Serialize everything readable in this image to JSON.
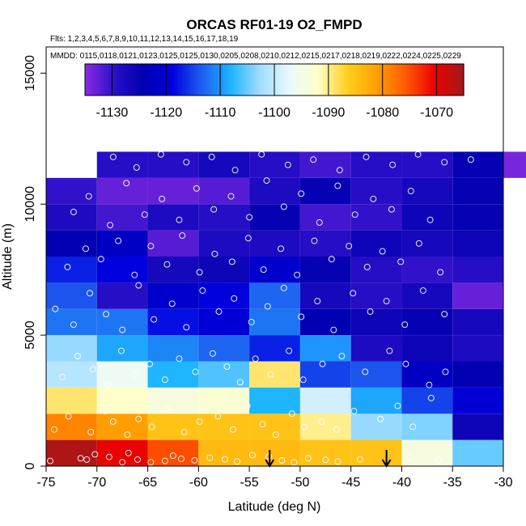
{
  "chart_data": {
    "type": "heatmap",
    "title": "ORCAS RF01-19 O2_FMPD",
    "flights_note": "Flts: 1,2,3,4,5,6,7,8,9,10,11,12,13,14,15,16,17,18,19",
    "dates_note": "MMDD: 0115,0118,0121,0123,0125,0125,0130,0205,0208,0210,0212,0215,0217,0218,0219,0222,0224,0225,0229",
    "xlabel": "Latitude (deg N)",
    "ylabel": "Altitude (m)",
    "xlim": [
      -75,
      -30
    ],
    "ylim": [
      0,
      16000
    ],
    "x_ticks": [
      -75,
      -70,
      -65,
      -60,
      -55,
      -50,
      -45,
      -40,
      -35,
      -30
    ],
    "x_tick_labels": [
      "-75",
      "-70",
      "-65",
      "-60",
      "-55",
      "-50",
      "-45",
      "-40",
      "-35",
      "-30"
    ],
    "y_ticks": [
      0,
      5000,
      10000,
      15000
    ],
    "y_tick_labels": [
      "0",
      "5000",
      "10000",
      "15000"
    ],
    "colorbar": {
      "range": [
        -1135,
        -1065
      ],
      "ticks": [
        -1130,
        -1120,
        -1110,
        -1100,
        -1090,
        -1080,
        -1070
      ],
      "tick_labels": [
        "-1130",
        "-1120",
        "-1110",
        "-1100",
        "-1090",
        "-1080",
        "-1070"
      ],
      "colors": [
        "#8a2be2",
        "#2a10c8",
        "#0000b0",
        "#0000e0",
        "#1e5ef0",
        "#1eb4ff",
        "#9fdcff",
        "#e8f8ff",
        "#ffffc8",
        "#ffd020",
        "#ffa000",
        "#ff5a00",
        "#ee0000",
        "#a01a1a"
      ]
    },
    "bin_width_deg": 5,
    "bin_height_m": 1000,
    "cells": [
      {
        "lat": -75,
        "alt": 0,
        "value": -1066
      },
      {
        "lat": -75,
        "alt": 1000,
        "value": -1079
      },
      {
        "lat": -75,
        "alt": 2000,
        "value": -1089
      },
      {
        "lat": -75,
        "alt": 3000,
        "value": -1101
      },
      {
        "lat": -75,
        "alt": 4000,
        "value": -1103
      },
      {
        "lat": -75,
        "alt": 5000,
        "value": -1112
      },
      {
        "lat": -75,
        "alt": 6000,
        "value": -1114
      },
      {
        "lat": -75,
        "alt": 7000,
        "value": -1117
      },
      {
        "lat": -75,
        "alt": 8000,
        "value": -1124
      },
      {
        "lat": -75,
        "alt": 9000,
        "value": -1128
      },
      {
        "lat": -75,
        "alt": 10000,
        "value": -1130
      },
      {
        "lat": -70,
        "alt": 0,
        "value": -1070
      },
      {
        "lat": -70,
        "alt": 1000,
        "value": -1081
      },
      {
        "lat": -70,
        "alt": 2000,
        "value": -1092
      },
      {
        "lat": -70,
        "alt": 3000,
        "value": -1096
      },
      {
        "lat": -70,
        "alt": 4000,
        "value": -1109
      },
      {
        "lat": -70,
        "alt": 5000,
        "value": -1112
      },
      {
        "lat": -70,
        "alt": 6000,
        "value": -1129
      },
      {
        "lat": -70,
        "alt": 7000,
        "value": -1119
      },
      {
        "lat": -70,
        "alt": 8000,
        "value": -1122
      },
      {
        "lat": -70,
        "alt": 9000,
        "value": -1131
      },
      {
        "lat": -70,
        "alt": 10000,
        "value": -1133
      },
      {
        "lat": -70,
        "alt": 11000,
        "value": -1129
      },
      {
        "lat": -65,
        "alt": 0,
        "value": -1075
      },
      {
        "lat": -65,
        "alt": 1000,
        "value": -1085
      },
      {
        "lat": -65,
        "alt": 2000,
        "value": -1094
      },
      {
        "lat": -65,
        "alt": 3000,
        "value": -1108
      },
      {
        "lat": -65,
        "alt": 4000,
        "value": -1111
      },
      {
        "lat": -65,
        "alt": 5000,
        "value": -1118
      },
      {
        "lat": -65,
        "alt": 6000,
        "value": -1121
      },
      {
        "lat": -65,
        "alt": 7000,
        "value": -1127
      },
      {
        "lat": -65,
        "alt": 8000,
        "value": -1132
      },
      {
        "lat": -65,
        "alt": 9000,
        "value": -1128
      },
      {
        "lat": -65,
        "alt": 10000,
        "value": -1133
      },
      {
        "lat": -65,
        "alt": 11000,
        "value": -1129
      },
      {
        "lat": -60,
        "alt": 0,
        "value": -1084
      },
      {
        "lat": -60,
        "alt": 1000,
        "value": -1085
      },
      {
        "lat": -60,
        "alt": 2000,
        "value": -1093
      },
      {
        "lat": -60,
        "alt": 3000,
        "value": -1106
      },
      {
        "lat": -60,
        "alt": 4000,
        "value": -1113
      },
      {
        "lat": -60,
        "alt": 5000,
        "value": -1120
      },
      {
        "lat": -60,
        "alt": 6000,
        "value": -1119
      },
      {
        "lat": -60,
        "alt": 7000,
        "value": -1126
      },
      {
        "lat": -60,
        "alt": 8000,
        "value": -1128
      },
      {
        "lat": -60,
        "alt": 9000,
        "value": -1129
      },
      {
        "lat": -60,
        "alt": 10000,
        "value": -1132
      },
      {
        "lat": -60,
        "alt": 11000,
        "value": -1127
      },
      {
        "lat": -55,
        "alt": 0,
        "value": -1084
      },
      {
        "lat": -55,
        "alt": 1000,
        "value": -1085
      },
      {
        "lat": -55,
        "alt": 2000,
        "value": -1108
      },
      {
        "lat": -55,
        "alt": 3000,
        "value": -1089
      },
      {
        "lat": -55,
        "alt": 4000,
        "value": -1117
      },
      {
        "lat": -55,
        "alt": 5000,
        "value": -1112
      },
      {
        "lat": -55,
        "alt": 6000,
        "value": -1113
      },
      {
        "lat": -55,
        "alt": 7000,
        "value": -1121
      },
      {
        "lat": -55,
        "alt": 8000,
        "value": -1128
      },
      {
        "lat": -55,
        "alt": 9000,
        "value": -1125
      },
      {
        "lat": -55,
        "alt": 10000,
        "value": -1128
      },
      {
        "lat": -55,
        "alt": 11000,
        "value": -1129
      },
      {
        "lat": -50,
        "alt": 0,
        "value": -1085
      },
      {
        "lat": -50,
        "alt": 1000,
        "value": -1090
      },
      {
        "lat": -50,
        "alt": 2000,
        "value": -1099
      },
      {
        "lat": -50,
        "alt": 3000,
        "value": -1115
      },
      {
        "lat": -50,
        "alt": 4000,
        "value": -1110
      },
      {
        "lat": -50,
        "alt": 5000,
        "value": -1124
      },
      {
        "lat": -50,
        "alt": 6000,
        "value": -1127
      },
      {
        "lat": -50,
        "alt": 7000,
        "value": -1125
      },
      {
        "lat": -50,
        "alt": 8000,
        "value": -1129
      },
      {
        "lat": -50,
        "alt": 9000,
        "value": -1131
      },
      {
        "lat": -50,
        "alt": 10000,
        "value": -1125
      },
      {
        "lat": -50,
        "alt": 11000,
        "value": -1131
      },
      {
        "lat": -45,
        "alt": 0,
        "value": -1085
      },
      {
        "lat": -45,
        "alt": 1000,
        "value": -1103
      },
      {
        "lat": -45,
        "alt": 2000,
        "value": -1109
      },
      {
        "lat": -45,
        "alt": 3000,
        "value": -1114
      },
      {
        "lat": -45,
        "alt": 4000,
        "value": -1128
      },
      {
        "lat": -45,
        "alt": 5000,
        "value": -1126
      },
      {
        "lat": -45,
        "alt": 6000,
        "value": -1129
      },
      {
        "lat": -45,
        "alt": 7000,
        "value": -1129
      },
      {
        "lat": -45,
        "alt": 8000,
        "value": -1126
      },
      {
        "lat": -45,
        "alt": 9000,
        "value": -1130
      },
      {
        "lat": -45,
        "alt": 10000,
        "value": -1129
      },
      {
        "lat": -45,
        "alt": 11000,
        "value": -1129
      },
      {
        "lat": -40,
        "alt": 0,
        "value": -1094
      },
      {
        "lat": -40,
        "alt": 1000,
        "value": -1104
      },
      {
        "lat": -40,
        "alt": 2000,
        "value": -1115
      },
      {
        "lat": -40,
        "alt": 3000,
        "value": -1122
      },
      {
        "lat": -40,
        "alt": 4000,
        "value": -1126
      },
      {
        "lat": -40,
        "alt": 5000,
        "value": -1125
      },
      {
        "lat": -40,
        "alt": 6000,
        "value": -1127
      },
      {
        "lat": -40,
        "alt": 7000,
        "value": -1130
      },
      {
        "lat": -40,
        "alt": 8000,
        "value": -1127
      },
      {
        "lat": -40,
        "alt": 9000,
        "value": -1126
      },
      {
        "lat": -40,
        "alt": 10000,
        "value": -1127
      },
      {
        "lat": -40,
        "alt": 11000,
        "value": -1129
      },
      {
        "lat": -35,
        "alt": 0,
        "value": -1105
      },
      {
        "lat": -35,
        "alt": 1000,
        "value": -1126
      },
      {
        "lat": -35,
        "alt": 2000,
        "value": -1120
      },
      {
        "lat": -35,
        "alt": 3000,
        "value": -1124
      },
      {
        "lat": -35,
        "alt": 4000,
        "value": -1128
      },
      {
        "lat": -35,
        "alt": 5000,
        "value": -1127
      },
      {
        "lat": -35,
        "alt": 6000,
        "value": -1133
      },
      {
        "lat": -35,
        "alt": 7000,
        "value": -1129
      },
      {
        "lat": -35,
        "alt": 8000,
        "value": -1126
      },
      {
        "lat": -35,
        "alt": 9000,
        "value": -1125
      },
      {
        "lat": -35,
        "alt": 10000,
        "value": -1125
      },
      {
        "lat": -35,
        "alt": 11000,
        "value": -1125
      },
      {
        "lat": -30,
        "alt": 11000,
        "value": -1134
      }
    ],
    "observations": [
      [
        -74.6,
        200
      ],
      [
        -71.6,
        300
      ],
      [
        -71.0,
        250
      ],
      [
        -70.2,
        450
      ],
      [
        -68.8,
        350
      ],
      [
        -67.5,
        150
      ],
      [
        -66.9,
        500
      ],
      [
        -66.0,
        250
      ],
      [
        -64.7,
        150
      ],
      [
        -63.3,
        200
      ],
      [
        -62.5,
        400
      ],
      [
        -61.7,
        280
      ],
      [
        -60.4,
        220
      ],
      [
        -58.9,
        320
      ],
      [
        -57.4,
        260
      ],
      [
        -56.2,
        180
      ],
      [
        -54.7,
        420
      ],
      [
        -53.1,
        360
      ],
      [
        -51.8,
        220
      ],
      [
        -50.6,
        140
      ],
      [
        -49.2,
        300
      ],
      [
        -47.5,
        240
      ],
      [
        -46.3,
        180
      ],
      [
        -44.1,
        260
      ],
      [
        -39.2,
        320
      ],
      [
        -36.4,
        220
      ],
      [
        -74.2,
        1400
      ],
      [
        -72.8,
        1900
      ],
      [
        -70.6,
        1300
      ],
      [
        -69.2,
        2100
      ],
      [
        -68.4,
        1700
      ],
      [
        -67.0,
        1200
      ],
      [
        -65.9,
        1800
      ],
      [
        -64.6,
        1500
      ],
      [
        -63.1,
        2200
      ],
      [
        -61.4,
        1300
      ],
      [
        -59.9,
        1700
      ],
      [
        -58.1,
        1900
      ],
      [
        -56.6,
        1400
      ],
      [
        -55.2,
        2300
      ],
      [
        -53.7,
        1600
      ],
      [
        -52.4,
        1200
      ],
      [
        -50.8,
        2000
      ],
      [
        -49.6,
        1500
      ],
      [
        -47.9,
        1700
      ],
      [
        -46.4,
        1400
      ],
      [
        -44.7,
        2100
      ],
      [
        -42.1,
        1800
      ],
      [
        -40.4,
        2300
      ],
      [
        -38.9,
        1500
      ],
      [
        -37.1,
        2600
      ],
      [
        -73.4,
        3400
      ],
      [
        -71.9,
        4200
      ],
      [
        -70.4,
        3700
      ],
      [
        -68.9,
        3100
      ],
      [
        -67.6,
        4400
      ],
      [
        -66.2,
        3500
      ],
      [
        -64.8,
        3900
      ],
      [
        -63.3,
        3300
      ],
      [
        -61.9,
        4100
      ],
      [
        -60.3,
        3600
      ],
      [
        -58.6,
        4300
      ],
      [
        -57.2,
        3800
      ],
      [
        -55.9,
        3200
      ],
      [
        -54.4,
        4100
      ],
      [
        -52.9,
        3500
      ],
      [
        -51.1,
        4400
      ],
      [
        -49.7,
        3300
      ],
      [
        -47.8,
        3900
      ],
      [
        -45.9,
        4200
      ],
      [
        -43.6,
        3600
      ],
      [
        -41.2,
        4400
      ],
      [
        -39.6,
        3900
      ],
      [
        -37.3,
        3100
      ],
      [
        -35.7,
        3600
      ],
      [
        -74.1,
        6000
      ],
      [
        -72.3,
        5400
      ],
      [
        -70.7,
        6600
      ],
      [
        -69.1,
        5800
      ],
      [
        -67.5,
        5200
      ],
      [
        -65.9,
        6900
      ],
      [
        -64.4,
        5600
      ],
      [
        -62.6,
        6200
      ],
      [
        -61.2,
        5300
      ],
      [
        -59.6,
        6700
      ],
      [
        -58.0,
        5900
      ],
      [
        -56.5,
        6400
      ],
      [
        -54.8,
        5500
      ],
      [
        -53.2,
        6100
      ],
      [
        -51.6,
        6800
      ],
      [
        -49.9,
        5700
      ],
      [
        -48.3,
        6300
      ],
      [
        -46.7,
        5200
      ],
      [
        -44.8,
        6600
      ],
      [
        -43.1,
        5900
      ],
      [
        -41.5,
        6300
      ],
      [
        -39.7,
        5400
      ],
      [
        -37.9,
        6700
      ],
      [
        -35.8,
        5800
      ],
      [
        -72.9,
        7600
      ],
      [
        -71.1,
        8300
      ],
      [
        -69.6,
        7900
      ],
      [
        -67.9,
        8600
      ],
      [
        -66.3,
        7300
      ],
      [
        -64.7,
        8400
      ],
      [
        -63.1,
        7700
      ],
      [
        -61.6,
        8800
      ],
      [
        -59.9,
        7400
      ],
      [
        -58.4,
        8100
      ],
      [
        -56.7,
        7800
      ],
      [
        -55.1,
        8700
      ],
      [
        -53.6,
        7500
      ],
      [
        -51.9,
        8300
      ],
      [
        -50.3,
        7300
      ],
      [
        -48.6,
        8600
      ],
      [
        -46.9,
        7900
      ],
      [
        -45.2,
        8400
      ],
      [
        -43.4,
        7600
      ],
      [
        -41.9,
        8200
      ],
      [
        -40.1,
        7800
      ],
      [
        -38.3,
        8500
      ],
      [
        -36.2,
        7400
      ],
      [
        -72.3,
        9700
      ],
      [
        -70.8,
        10300
      ],
      [
        -68.7,
        9200
      ],
      [
        -67.1,
        10800
      ],
      [
        -65.3,
        9600
      ],
      [
        -63.6,
        10200
      ],
      [
        -61.9,
        9400
      ],
      [
        -60.2,
        10600
      ],
      [
        -58.5,
        9800
      ],
      [
        -56.8,
        10300
      ],
      [
        -55.0,
        9500
      ],
      [
        -53.3,
        10900
      ],
      [
        -51.6,
        9900
      ],
      [
        -49.9,
        10400
      ],
      [
        -48.1,
        9300
      ],
      [
        -46.3,
        10700
      ],
      [
        -44.6,
        9600
      ],
      [
        -42.8,
        10200
      ],
      [
        -41.0,
        9800
      ],
      [
        -39.1,
        10500
      ],
      [
        -37.2,
        9400
      ],
      [
        -68.4,
        11800
      ],
      [
        -66.1,
        11400
      ],
      [
        -63.7,
        11900
      ],
      [
        -61.2,
        11600
      ],
      [
        -58.7,
        11800
      ],
      [
        -56.4,
        11300
      ],
      [
        -53.8,
        11900
      ],
      [
        -51.2,
        11500
      ],
      [
        -48.7,
        11700
      ],
      [
        -46.1,
        11300
      ],
      [
        -43.5,
        11800
      ],
      [
        -40.9,
        11500
      ],
      [
        -38.4,
        11900
      ],
      [
        -35.8,
        11600
      ],
      [
        -33.2,
        11700
      ]
    ],
    "arrows": [
      {
        "lat": -53.0,
        "label": "flight arrow"
      },
      {
        "lat": -41.5,
        "label": "flight arrow"
      }
    ]
  }
}
